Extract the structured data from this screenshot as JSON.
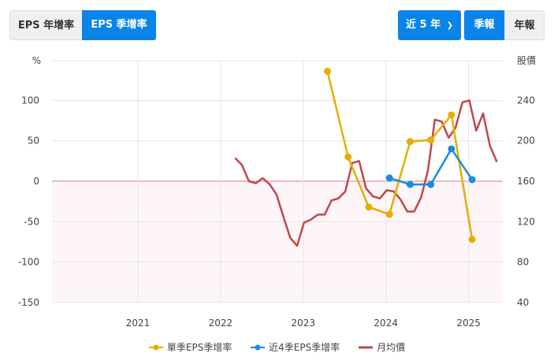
{
  "controls": {
    "left_tabs": [
      {
        "label": "EPS 年增率",
        "active": false
      },
      {
        "label": "EPS 季增率",
        "active": true
      }
    ],
    "range_select": "近 5 年",
    "period_tabs": [
      {
        "label": "季報",
        "active": true
      },
      {
        "label": "年報",
        "active": false
      }
    ]
  },
  "colors": {
    "yoy": "#e6ad00",
    "ttm": "#1a8ae5",
    "price": "#c0474b",
    "primary": "#0a84e8"
  },
  "chart_data": {
    "type": "line",
    "title": "",
    "ylabel": "%",
    "ylabel_right": "股價",
    "ylim": [
      -150,
      135
    ],
    "ylim_right": [
      40,
      250
    ],
    "yticks": [
      -150,
      -100,
      -50,
      0,
      50,
      100
    ],
    "yticks_right": [
      40,
      80,
      120,
      160,
      200,
      240
    ],
    "xticks": [
      "2021",
      "2022",
      "2023",
      "2024",
      "2025"
    ],
    "grid": true,
    "legend_position": "bottom",
    "series": [
      {
        "name": "單季EPS季增率",
        "axis": "left",
        "x": [
          "2023Q2",
          "2023Q3",
          "2023Q4",
          "2024Q1",
          "2024Q2",
          "2024Q3",
          "2024Q4",
          "2025Q1"
        ],
        "values": [
          136,
          30,
          -32,
          -41,
          49,
          51,
          82,
          -72
        ]
      },
      {
        "name": "近4季EPS季增率",
        "axis": "left",
        "x": [
          "2024Q1",
          "2024Q2",
          "2024Q3",
          "2024Q4",
          "2025Q1"
        ],
        "values": [
          4,
          -4,
          -4,
          40,
          2
        ]
      },
      {
        "name": "月均價",
        "axis": "right",
        "x_start": "2022-03",
        "frequency": "monthly",
        "values": [
          183,
          176,
          160,
          158,
          163,
          157,
          147,
          125,
          104,
          96,
          119,
          122,
          127,
          127,
          141,
          143,
          150,
          178,
          180,
          153,
          145,
          143,
          151,
          150,
          142,
          130,
          130,
          144,
          171,
          221,
          219,
          203,
          213,
          238,
          240,
          210,
          227,
          195,
          179
        ]
      }
    ]
  },
  "legend": [
    {
      "label": "單季EPS季增率",
      "icon": "dot-line-icon"
    },
    {
      "label": "近4季EPS季增率",
      "icon": "dot-line-icon"
    },
    {
      "label": "月均價",
      "icon": "line-icon"
    }
  ]
}
